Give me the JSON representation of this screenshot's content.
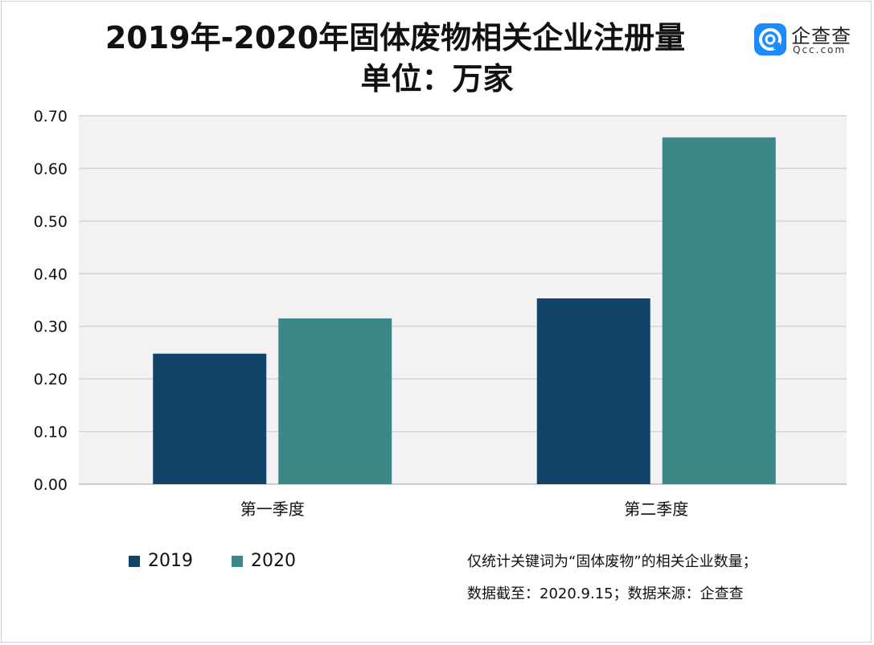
{
  "title_line1": "2019年-2020年固体废物相关企业注册量",
  "title_line2": "单位：万家",
  "logo": {
    "main": "企查查",
    "sub": "Qcc.com",
    "icon": "qcc-logo-icon"
  },
  "notes": [
    "仅统计关键词为“固体废物”的相关企业数量；",
    "数据截至：2020.9.15；数据来源：企查查"
  ],
  "chart_data": {
    "type": "bar",
    "categories": [
      "第一季度",
      "第二季度"
    ],
    "series": [
      {
        "name": "2019",
        "values": [
          0.248,
          0.353
        ],
        "color": "#12446a"
      },
      {
        "name": "2020",
        "values": [
          0.315,
          0.659
        ],
        "color": "#3c8888"
      }
    ],
    "ylim": [
      0,
      0.7
    ],
    "yticks": [
      "0.00",
      "0.10",
      "0.20",
      "0.30",
      "0.40",
      "0.50",
      "0.60",
      "0.70"
    ],
    "grid": true,
    "legend": "bottom-left",
    "plot_background": "#f2f2f2"
  }
}
